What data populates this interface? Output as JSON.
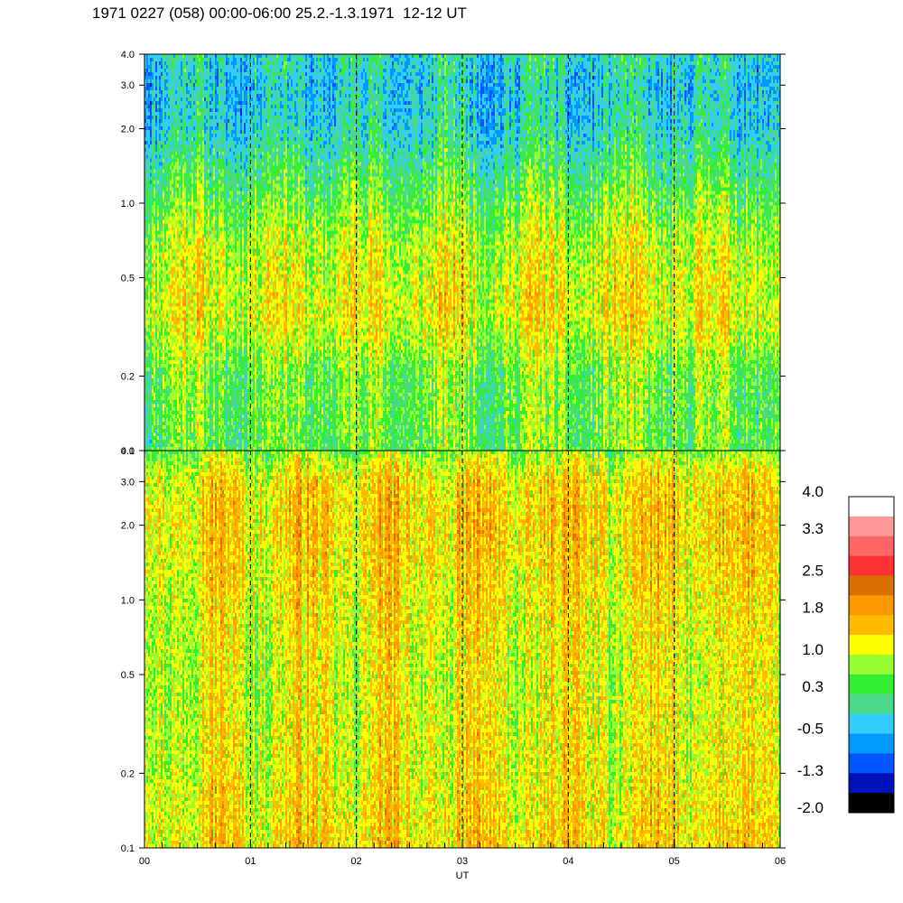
{
  "page": {
    "title": "1971 0227 (058) 00:00-06:00 25.2.-1.3.1971  12-12 UT"
  },
  "chart_data": [
    {
      "type": "heatmap",
      "panel": "upper",
      "x_range": [
        0,
        6
      ],
      "y_scale": "log",
      "ylim": [
        0.1,
        4.0
      ],
      "yticks": [
        "0.1",
        "0.2",
        "0.5",
        "1.0",
        "2.0",
        "3.0",
        "4.0"
      ],
      "ytick_values": [
        0.1,
        0.2,
        0.5,
        1.0,
        2.0,
        3.0,
        4.0
      ],
      "hour_markers": [
        1,
        2,
        3,
        4,
        5
      ],
      "profile": [
        [
          0.1,
          0.55
        ],
        [
          0.2,
          0.6
        ],
        [
          0.35,
          1.2
        ],
        [
          0.5,
          1.1
        ],
        [
          0.7,
          0.95
        ],
        [
          1.0,
          0.6
        ],
        [
          1.4,
          0.25
        ],
        [
          2.0,
          -0.15
        ],
        [
          3.0,
          -0.3
        ],
        [
          4.0,
          -0.1
        ]
      ]
    },
    {
      "type": "heatmap",
      "panel": "lower",
      "x_range": [
        0,
        6
      ],
      "y_scale": "log",
      "ylim": [
        0.1,
        4.0
      ],
      "yticks": [
        "0.1",
        "0.2",
        "0.5",
        "1.0",
        "2.0",
        "3.0",
        "4.0"
      ],
      "ytick_values": [
        0.1,
        0.2,
        0.5,
        1.0,
        2.0,
        3.0,
        4.0
      ],
      "hour_markers": [
        1,
        2,
        3,
        4,
        5
      ],
      "profile": [
        [
          0.1,
          1.4
        ],
        [
          0.2,
          1.2
        ],
        [
          0.5,
          1.1
        ],
        [
          1.0,
          1.25
        ],
        [
          2.0,
          1.45
        ],
        [
          3.0,
          1.35
        ],
        [
          3.6,
          1.0
        ],
        [
          4.0,
          0.65
        ]
      ]
    },
    {
      "type": "colorbar",
      "labels": [
        "4.0",
        "3.3",
        "2.5",
        "1.8",
        "1.0",
        "0.3",
        "-0.5",
        "-1.3",
        "-2.0"
      ],
      "label_values": [
        4.0,
        3.3,
        2.5,
        1.8,
        1.0,
        0.3,
        -0.5,
        -1.3,
        -2.0
      ],
      "colors": [
        "#ffffff",
        "#ff9999",
        "#ff6666",
        "#ff3333",
        "#d97000",
        "#ff9900",
        "#ffbb00",
        "#ffff00",
        "#99ff33",
        "#33ee33",
        "#4dd98a",
        "#33ccff",
        "#0099ff",
        "#0055ff",
        "#0011bb",
        "#000000"
      ],
      "range": [
        -2.0,
        4.0
      ]
    }
  ],
  "x_axis": {
    "label": "UT",
    "ticks": [
      "00",
      "01",
      "02",
      "03",
      "04",
      "05",
      "06"
    ],
    "tick_values": [
      0,
      1,
      2,
      3,
      4,
      5,
      6
    ]
  }
}
